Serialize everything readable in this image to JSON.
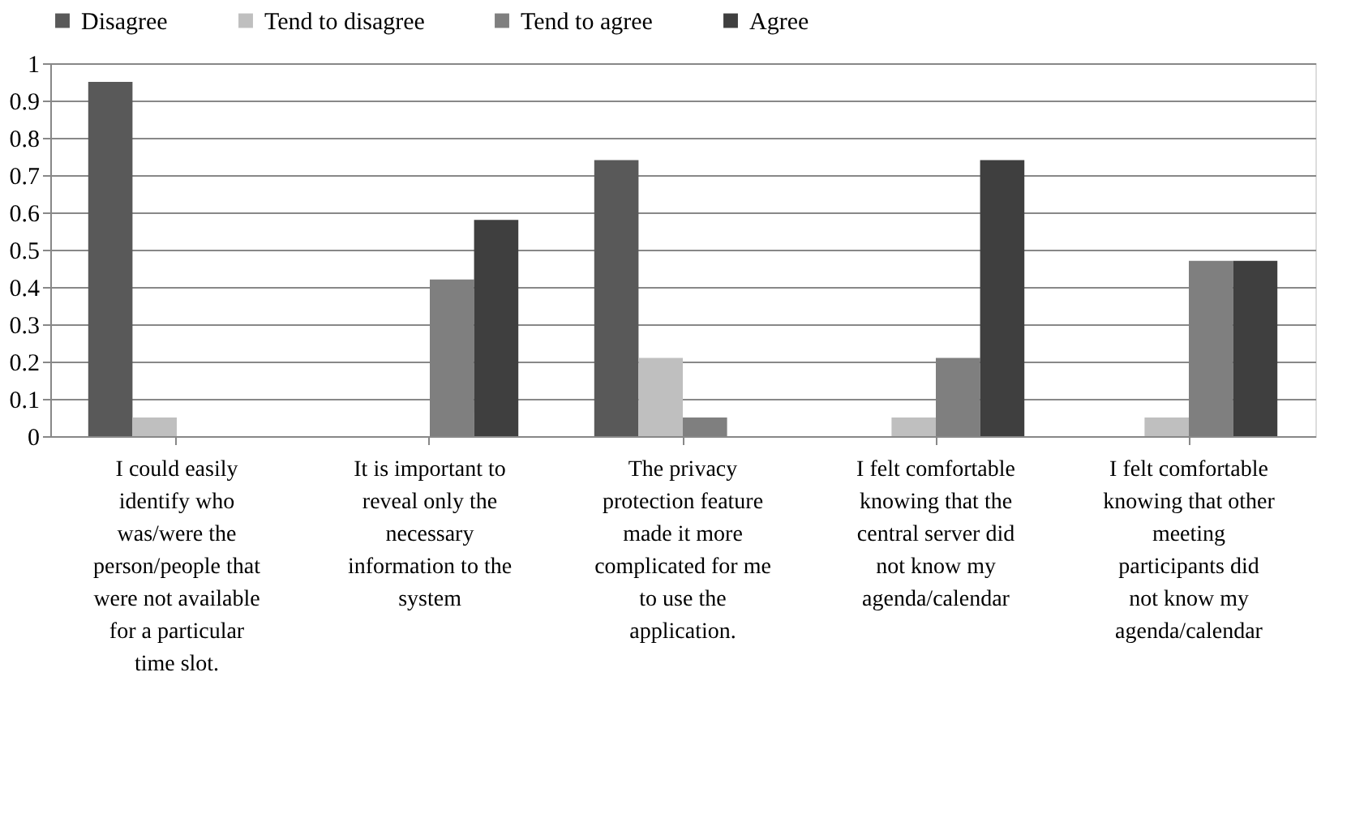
{
  "chart_data": {
    "type": "bar",
    "categories": [
      "I could easily identify who was/were the person/people that were not available for a particular time slot.",
      "It is important to reveal only the necessary information to the system",
      "The privacy protection feature made it more complicated for me to use the application.",
      "I felt comfortable knowing that the central server did not know my agenda/calendar",
      "I felt comfortable knowing that other meeting participants did not know my agenda/calendar"
    ],
    "series": [
      {
        "name": "Disagree",
        "color": "#595959",
        "values": [
          0.95,
          0,
          0.74,
          0,
          0
        ]
      },
      {
        "name": "Tend to disagree",
        "color": "#bfbfbf",
        "values": [
          0.05,
          0,
          0.21,
          0.05,
          0.05
        ]
      },
      {
        "name": "Tend to agree",
        "color": "#7f7f7f",
        "values": [
          0,
          0.42,
          0.05,
          0.21,
          0.47
        ]
      },
      {
        "name": "Agree",
        "color": "#3f3f3f",
        "values": [
          0,
          0.58,
          0,
          0.74,
          0.47
        ]
      }
    ],
    "ylim": [
      0,
      1
    ],
    "yticks": [
      0,
      0.1,
      0.2,
      0.3,
      0.4,
      0.5,
      0.6,
      0.7,
      0.8,
      0.9,
      1
    ],
    "grid": "y",
    "legend": "top"
  }
}
